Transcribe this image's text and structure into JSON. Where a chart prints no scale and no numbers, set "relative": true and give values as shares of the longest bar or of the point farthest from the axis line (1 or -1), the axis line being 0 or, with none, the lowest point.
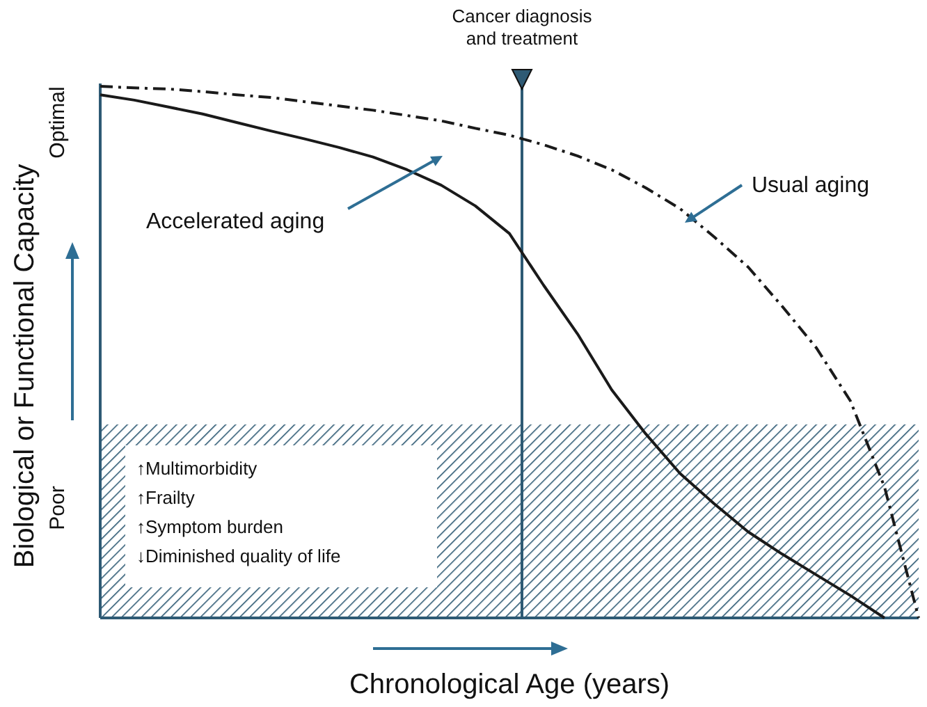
{
  "chart_data": {
    "type": "line",
    "relative": true,
    "xlabel": "Chronological Age (years)",
    "ylabel": "Biological or Functional Capacity",
    "categories": [
      null,
      null,
      null,
      null,
      null,
      null,
      null,
      null,
      null,
      null,
      null,
      null,
      null,
      null,
      null,
      null,
      null,
      null,
      null,
      null,
      null,
      null,
      null,
      null,
      null
    ],
    "series": [
      {
        "name": "Accelerated aging",
        "color": "#1a1a1a",
        "line_style": "solid",
        "values": [
          0.984,
          0.974,
          0.961,
          0.948,
          0.932,
          0.916,
          0.901,
          0.885,
          0.867,
          0.843,
          0.814,
          0.775,
          0.723,
          0.626,
          0.534,
          0.429,
          0.346,
          0.272,
          0.215,
          0.162,
          0.12,
          0.081,
          0.042,
          0,
          null
        ]
      },
      {
        "name": "Usual aging",
        "color": "#1a1a1a",
        "line_style": "dashed",
        "values": [
          1,
          0.997,
          0.995,
          0.99,
          0.984,
          0.979,
          0.971,
          0.963,
          0.955,
          0.945,
          0.935,
          0.921,
          0.908,
          0.89,
          0.869,
          0.843,
          0.809,
          0.77,
          0.717,
          0.66,
          0.586,
          0.508,
          0.408,
          0.246,
          0
        ]
      }
    ],
    "bands": [
      {
        "axis": "y",
        "from": 0,
        "to": 0.364,
        "color": "#2e5a74"
      }
    ],
    "annotations": [
      "Optimal",
      "Poor",
      "↑Multimorbidity",
      "↑Frailty",
      "↑Symptom burden",
      "↓Diminished quality of life",
      "Cancer diagnosis and treatment"
    ]
  }
}
